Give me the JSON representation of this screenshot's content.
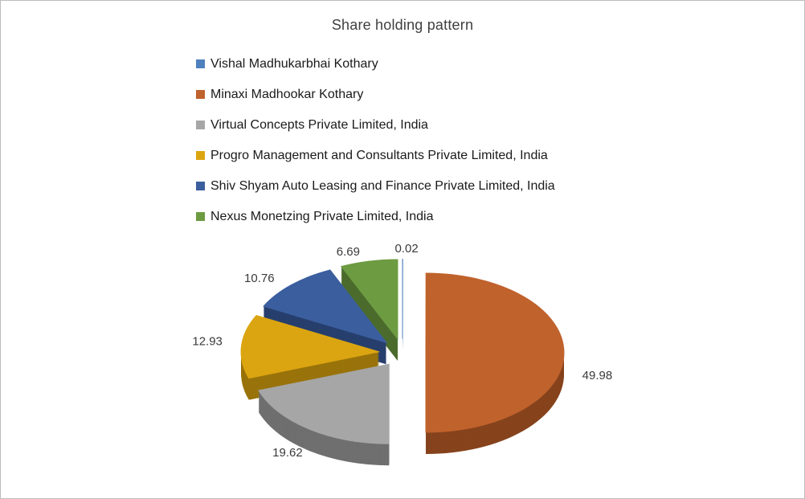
{
  "chart_data": {
    "type": "pie",
    "style": "3d-exploded",
    "title": "Share holding pattern",
    "legend_position": "top-left-column",
    "data_labels": "outside-value",
    "slices": [
      {
        "label": "Vishal Madhukarbhai Kothary",
        "value": 0.02,
        "display": "0.02",
        "color": "#4e81bd",
        "side_color": "#35598a"
      },
      {
        "label": "Minaxi Madhookar Kothary",
        "value": 49.98,
        "display": "49.98",
        "color": "#c0622c",
        "side_color": "#86431c"
      },
      {
        "label": "Virtual Concepts Private Limited, India",
        "value": 19.62,
        "display": "19.62",
        "color": "#a6a6a6",
        "side_color": "#6f6f6f"
      },
      {
        "label": "Progro Management and Consultants Private Limited, India",
        "value": 12.93,
        "display": "12.93",
        "color": "#dba511",
        "side_color": "#99730b"
      },
      {
        "label": "Shiv Shyam Auto Leasing and Finance Private Limited, India",
        "value": 10.76,
        "display": "10.76",
        "color": "#3b5e9e",
        "side_color": "#273f6d"
      },
      {
        "label": "Nexus Monetzing Private Limited, India",
        "value": 6.69,
        "display": "6.69",
        "color": "#6d9b41",
        "side_color": "#4a6b2c"
      }
    ]
  }
}
